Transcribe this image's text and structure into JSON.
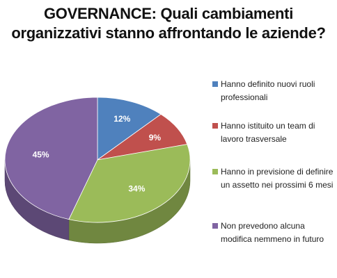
{
  "title_line1": "GOVERNANCE: Quali cambiamenti",
  "title_line2": "organizzativi stanno affrontando le aziende?",
  "chart_data": {
    "type": "pie",
    "title": "GOVERNANCE: Quali cambiamenti organizzativi stanno affrontando le aziende?",
    "labels": [
      "Hanno definito nuovi ruoli professionali",
      "Hanno istituito un team di lavoro trasversale",
      "Hanno in previsione di definire un assetto nei prossimi 6 mesi",
      "Non prevedono alcuna modifica nemmeno in futuro"
    ],
    "values": [
      12,
      9,
      34,
      45
    ],
    "value_labels": [
      "12%",
      "9%",
      "34%",
      "45%"
    ],
    "colors": [
      "#4F81BD",
      "#C0504D",
      "#9BBB59",
      "#8064A2"
    ],
    "legend_placement": "right",
    "style": "3d"
  },
  "legend": {
    "items": [
      {
        "label": "Hanno definito nuovi ruoli professionali"
      },
      {
        "label": "Hanno istituito un team di lavoro trasversale"
      },
      {
        "label": "Hanno in previsione di definire un assetto nei prossimi 6 mesi"
      },
      {
        "label": "Non prevedono alcuna modifica nemmeno in futuro"
      }
    ]
  }
}
